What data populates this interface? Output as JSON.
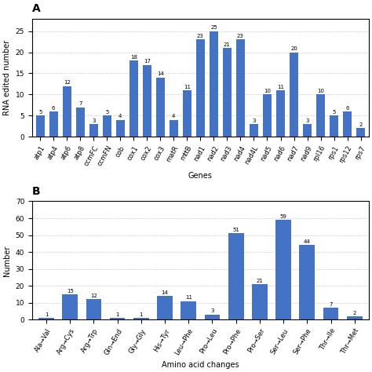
{
  "chart_data": [
    {
      "type": "bar",
      "title": "A",
      "categories": [
        "atp1",
        "atp4",
        "atp6",
        "atp8",
        "ccmFC",
        "ccmFN",
        "cob",
        "cox1",
        "cox2",
        "cox3",
        "matR",
        "mttB",
        "nad1",
        "nad2",
        "nad3",
        "nad4",
        "nad4L",
        "nad5",
        "nad6",
        "nad7",
        "nad9",
        "rpl16",
        "rps1",
        "rps12",
        "rps7"
      ],
      "values": [
        5,
        6,
        12,
        7,
        3,
        5,
        4,
        18,
        17,
        14,
        4,
        11,
        23,
        25,
        21,
        23,
        3,
        10,
        11,
        20,
        3,
        10,
        5,
        6,
        2
      ],
      "xlabel": "Genes",
      "ylabel": "RNA edited number",
      "ylim": [
        0,
        28
      ],
      "yticks": [
        0,
        5,
        10,
        15,
        20,
        25
      ],
      "grid": true,
      "data_labels": true,
      "color": "#4472C4"
    },
    {
      "type": "bar",
      "title": "B",
      "categories": [
        "Ala→Val",
        "Arg→Cys",
        "Arg→Trp",
        "Gln→End",
        "Gly→Gly",
        "His→Tyr",
        "Leu→Phe",
        "Pro→Leu",
        "Pro→Phe",
        "Pro→Ser",
        "Ser→Leu",
        "Ser→Phe",
        "Thr→Ile",
        "Thr→Met"
      ],
      "values": [
        1,
        15,
        12,
        1,
        1,
        14,
        11,
        3,
        51,
        21,
        59,
        44,
        7,
        2
      ],
      "xlabel": "Amino acid changes",
      "ylabel": "Number",
      "ylim": [
        0,
        70
      ],
      "yticks": [
        0,
        10,
        20,
        30,
        40,
        50,
        60,
        70
      ],
      "grid": true,
      "data_labels": true,
      "color": "#4472C4"
    }
  ]
}
